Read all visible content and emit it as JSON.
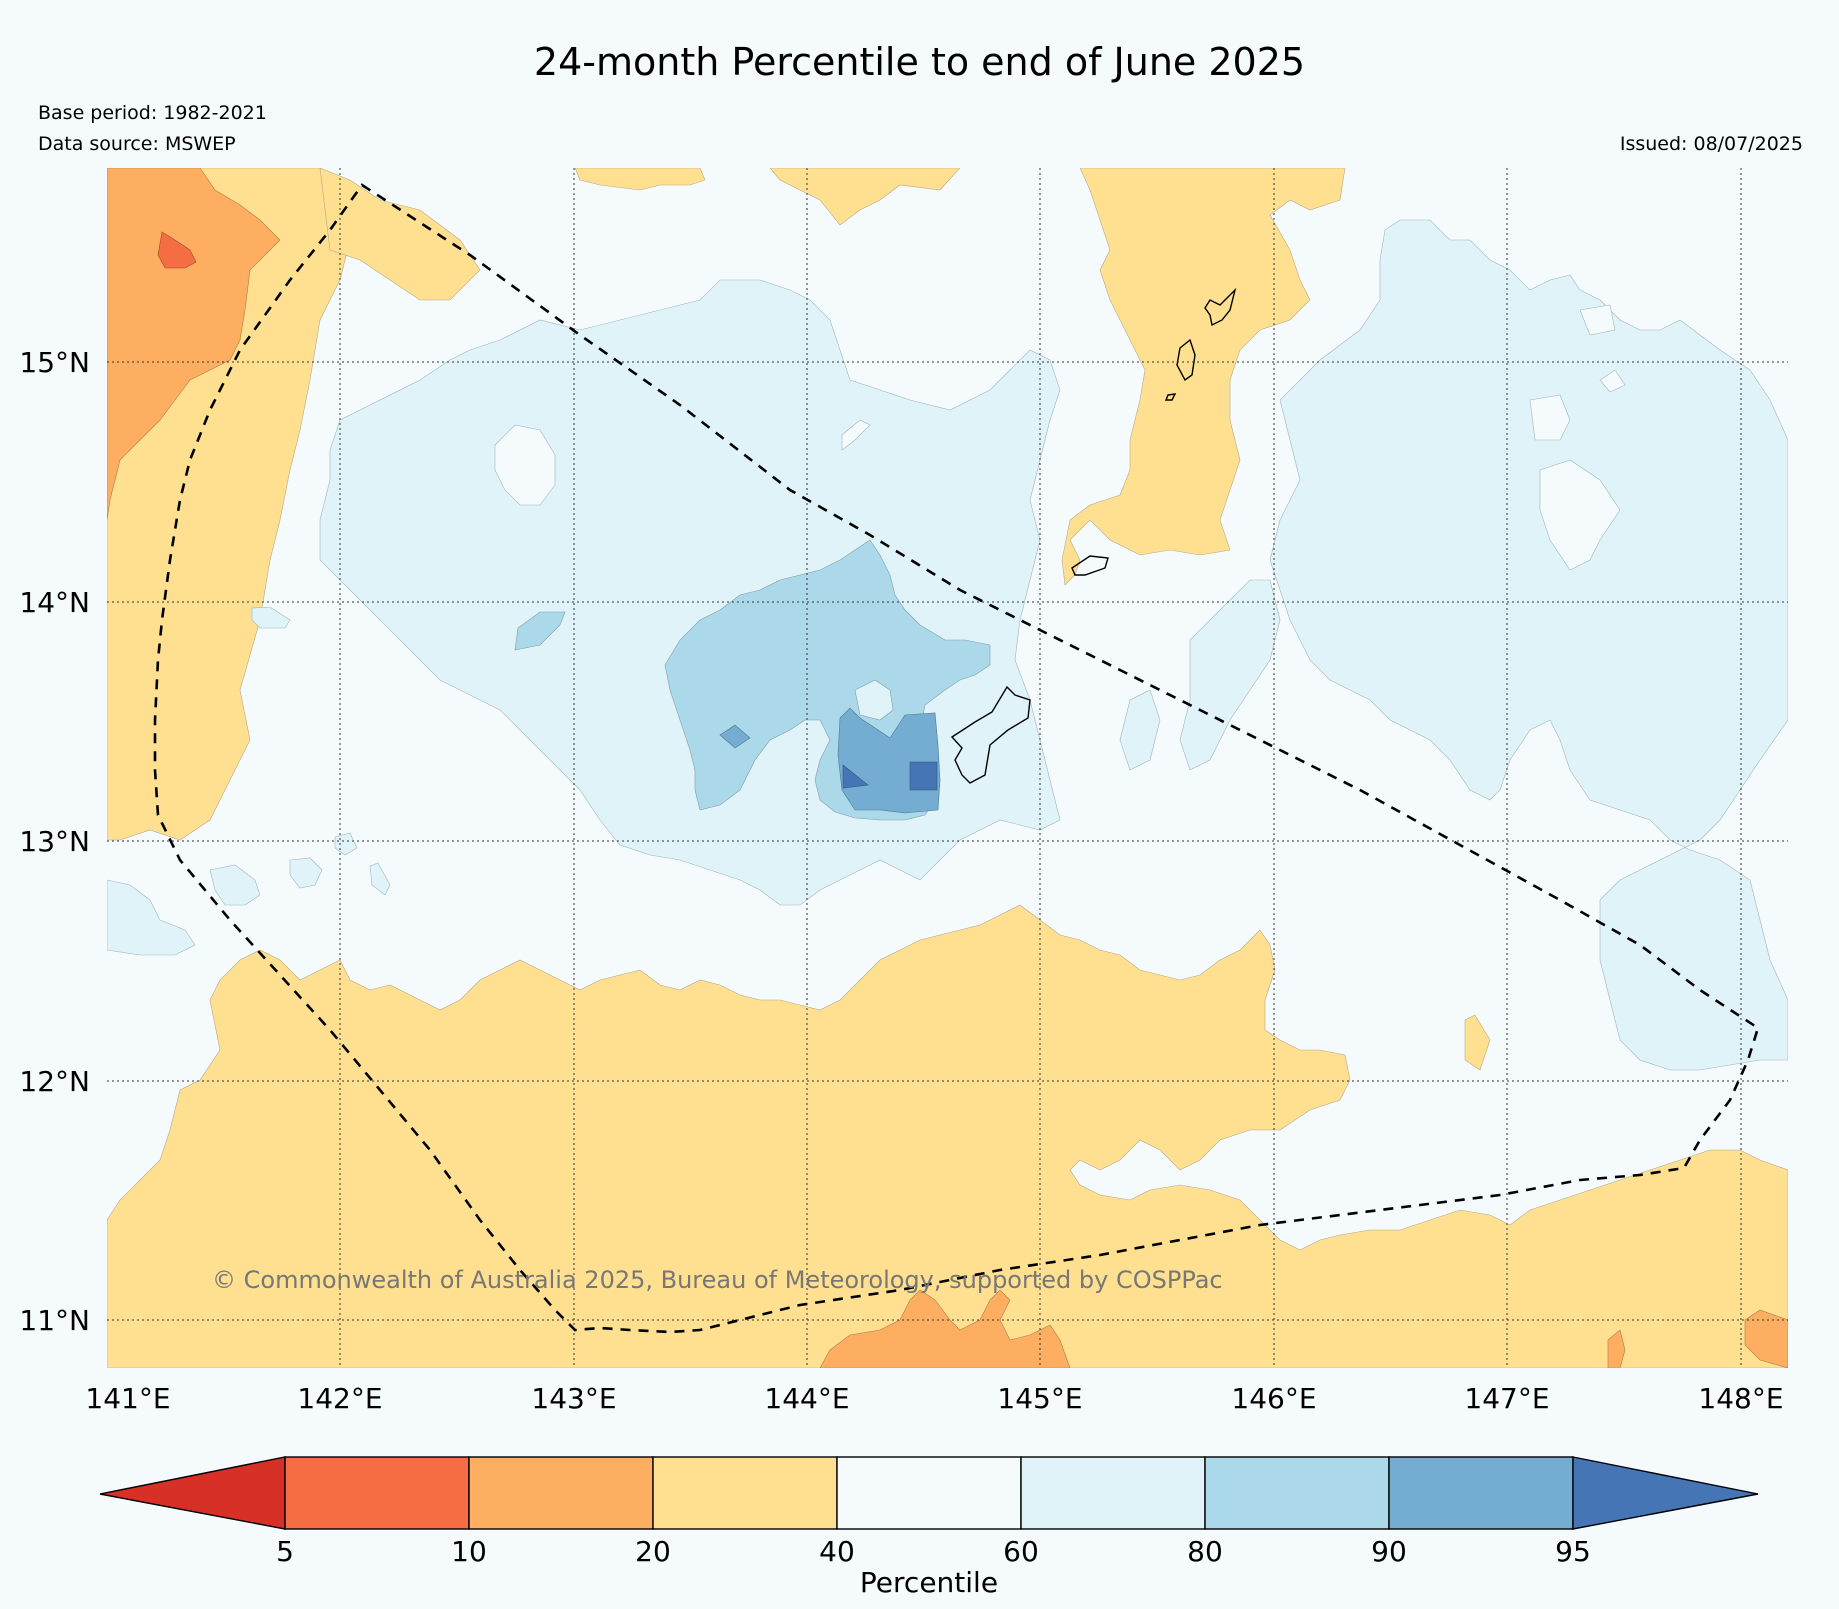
{
  "title": "24-month Percentile to end of June 2025",
  "base_period": "Base period: 1982-2021",
  "data_source": "Data source: MSWEP",
  "issued": "Issued: 08/07/2025",
  "copyright": "© Commonwealth of Australia 2025, Bureau of Meteorology, supported by COSPPac",
  "map": {
    "lon_ticks": [
      "141°E",
      "142°E",
      "143°E",
      "144°E",
      "145°E",
      "146°E",
      "147°E",
      "148°E"
    ],
    "lat_ticks": [
      "15°N",
      "14°N",
      "13°N",
      "12°N",
      "11°N"
    ],
    "lon_range": [
      141,
      148.2
    ],
    "lat_range": [
      10.8,
      15.8
    ]
  },
  "colorbar": {
    "label": "Percentile",
    "ticks": [
      "5",
      "10",
      "20",
      "40",
      "60",
      "80",
      "90",
      "95"
    ],
    "bins": [
      {
        "range": "<5",
        "color": "#d73027"
      },
      {
        "range": "5-10",
        "color": "#f46d43"
      },
      {
        "range": "10-20",
        "color": "#fdae61"
      },
      {
        "range": "20-40",
        "color": "#fee090"
      },
      {
        "range": "40-60",
        "color": "#f5fbfd"
      },
      {
        "range": "60-80",
        "color": "#e0f3f8"
      },
      {
        "range": "80-90",
        "color": "#abd9e9"
      },
      {
        "range": "90-95",
        "color": "#74add1"
      },
      {
        "range": ">95",
        "color": "#4575b4"
      }
    ]
  }
}
